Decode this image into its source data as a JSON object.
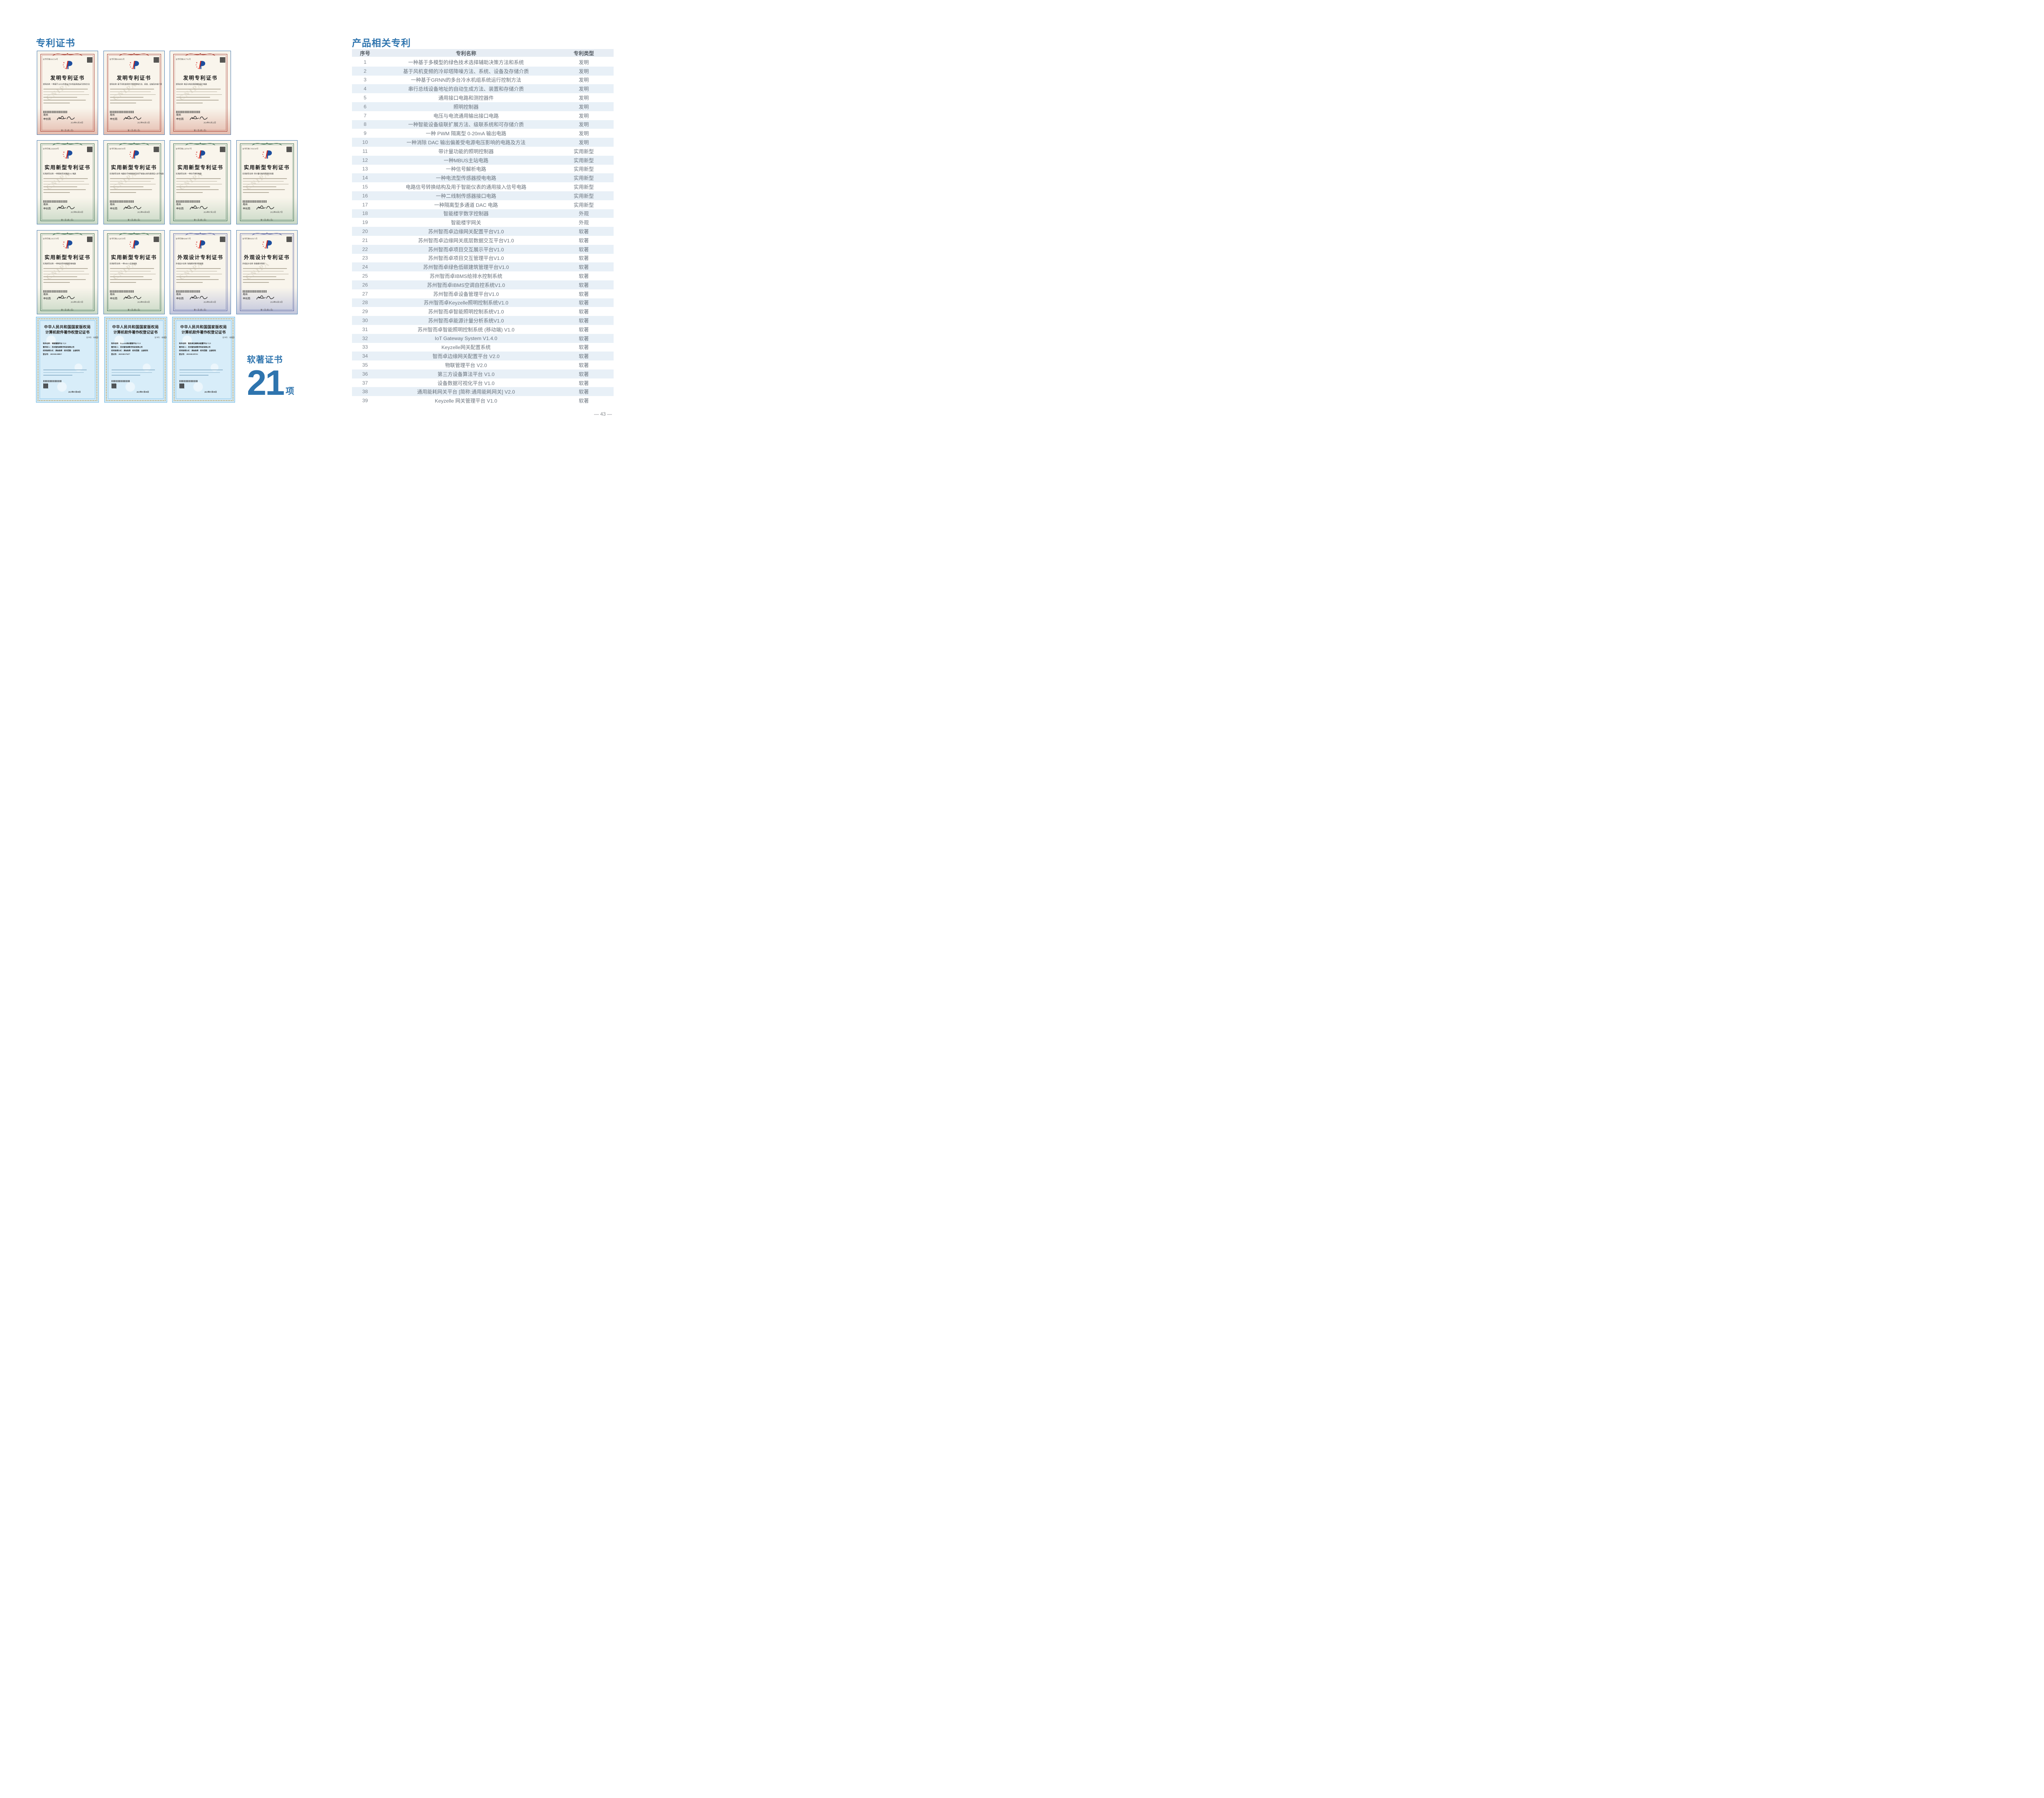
{
  "page": {
    "number_label": "— 43 —"
  },
  "left_section": {
    "heading": "专利证书"
  },
  "right_section": {
    "heading": "产品相关专利"
  },
  "software_stat": {
    "label": "软著证书",
    "value": "21",
    "unit": "项"
  },
  "patents_table": {
    "headers": {
      "no": "序号",
      "name": "专利名称",
      "type": "专利类型"
    },
    "rows": [
      {
        "no": "1",
        "name": "一种基于多模型的绿色技术选择辅助决策方法和系统",
        "type": "发明"
      },
      {
        "no": "2",
        "name": "基于风机变频的冷却塔降噪方法、系统、设备及存储介质",
        "type": "发明"
      },
      {
        "no": "3",
        "name": "一种基于GRNN的多台冷水机组系统运行控制方法",
        "type": "发明"
      },
      {
        "no": "4",
        "name": "串行总线设备地址的自动生成方法、装置和存储介质",
        "type": "发明"
      },
      {
        "no": "5",
        "name": "通用接口电路和测控器件",
        "type": "发明"
      },
      {
        "no": "6",
        "name": "照明控制器",
        "type": "发明"
      },
      {
        "no": "7",
        "name": "电压与电流通用输出接口电路",
        "type": "发明"
      },
      {
        "no": "8",
        "name": "一种智能设备级联扩展方法、级联系统和可存储介质",
        "type": "发明"
      },
      {
        "no": "9",
        "name": "一种 PWM 隔离型 0-20mA 输出电路",
        "type": "发明"
      },
      {
        "no": "10",
        "name": "一种消除 DAC 输出偏差受电源电压影响的电路及方法",
        "type": "发明"
      },
      {
        "no": "11",
        "name": "带计量功能的照明控制器",
        "type": "实用新型"
      },
      {
        "no": "12",
        "name": "一种MBUS主站电路",
        "type": "实用新型"
      },
      {
        "no": "13",
        "name": "一种信号解析电路",
        "type": "实用新型"
      },
      {
        "no": "14",
        "name": "一种电流型传感器授电电路",
        "type": "实用新型"
      },
      {
        "no": "15",
        "name": "电路信号转换结构及用于智能仪表的通用接入信号电路",
        "type": "实用新型"
      },
      {
        "no": "16",
        "name": "一种二线制传感器接口电路",
        "type": "实用新型"
      },
      {
        "no": "17",
        "name": "一种隔离型多通道 DAC 电路",
        "type": "实用新型"
      },
      {
        "no": "18",
        "name": "智能楼宇数字控制器",
        "type": "外观"
      },
      {
        "no": "19",
        "name": "智能楼宇网关",
        "type": "外观"
      },
      {
        "no": "20",
        "name": "苏州智而卓边缘网关配置平台V1.0",
        "type": "软著"
      },
      {
        "no": "21",
        "name": "苏州智而卓边缘网关底层数据交互平台V1.0",
        "type": "软著"
      },
      {
        "no": "22",
        "name": "苏州智而卓项目交互展示平台V1.0",
        "type": "软著"
      },
      {
        "no": "23",
        "name": "苏州智而卓项目交互管理平台V1.0",
        "type": "软著"
      },
      {
        "no": "24",
        "name": "苏州智而卓绿色低碳建筑管理平台V1.0",
        "type": "软著"
      },
      {
        "no": "25",
        "name": "苏州智而卓IBMS给排水控制系统",
        "type": "软著"
      },
      {
        "no": "26",
        "name": "苏州智而卓IBMS空调自控系统V1.0",
        "type": "软著"
      },
      {
        "no": "27",
        "name": "苏州智而卓设备管理平台V1.0",
        "type": "软著"
      },
      {
        "no": "28",
        "name": "苏州智而卓Keyzelle照明控制系统V1.0",
        "type": "软著"
      },
      {
        "no": "29",
        "name": "苏州智而卓智能照明控制系统V1.0",
        "type": "软著"
      },
      {
        "no": "30",
        "name": "苏州智而卓能源计量分析系统V1.0",
        "type": "软著"
      },
      {
        "no": "31",
        "name": "苏州智而卓智能照明控制系统 (移动端) V1.0",
        "type": "软著"
      },
      {
        "no": "32",
        "name": "IoT Gateway System V1.4.0",
        "type": "软著"
      },
      {
        "no": "33",
        "name": "Keyzelle网关配置系统",
        "type": "软著"
      },
      {
        "no": "34",
        "name": "智而卓边缘网关配置平台 V2.0",
        "type": "软著"
      },
      {
        "no": "35",
        "name": "物联管理平台 V2.0",
        "type": "软著"
      },
      {
        "no": "36",
        "name": "第三方设备算法平台 V1.0",
        "type": "软著"
      },
      {
        "no": "37",
        "name": "设备数据可视化平台 V1.0",
        "type": "软著"
      },
      {
        "no": "38",
        "name": "通用能耗网关平台 [简称:通用能耗网关] V2.0",
        "type": "软著"
      },
      {
        "no": "39",
        "name": "Keyzelle 网关管理平台 V1.0",
        "type": "软著"
      }
    ]
  },
  "certificate_common": {
    "director_label": "局长",
    "director_name": "申长雨",
    "page_note": "第 1 页 (共 2 页)",
    "watermark": "CNIPA"
  },
  "certificate_rows": [
    {
      "items": [
        {
          "style": "invention",
          "title": "发明专利证书",
          "name_label": "发明名称",
          "cert_no": "证书号第6661534号",
          "name": "一种基于GRNN的多台冷水机组系统运行控制方法",
          "date": "2024年01月30日"
        },
        {
          "style": "invention",
          "title": "发明专利证书",
          "name_label": "发明名称",
          "cert_no": "证书号第8000883号",
          "name": "基于风机变频的冷却塔降噪方法、系统、设备及存储介质",
          "date": "2025年06月13日"
        },
        {
          "style": "invention",
          "title": "发明专利证书",
          "name_label": "发明名称",
          "cert_no": "证书号第6817761号",
          "name": "电压与电流通用输出接口电路",
          "date": "2024年03月22日"
        }
      ]
    },
    {
      "items": [
        {
          "style": "utility",
          "title": "实用新型专利证书",
          "name_label": "实用新型名称",
          "cert_no": "证书号第22926608号",
          "name": "一种隔离型多通道DAC电路",
          "date": "2025年06月03日"
        },
        {
          "style": "utility",
          "title": "实用新型专利证书",
          "name_label": "实用新型名称",
          "cert_no": "证书号第20686596号",
          "name": "电路信号转换结构及用于智能仪表的通用接入信号电路",
          "date": "2023年04月06日"
        },
        {
          "style": "utility",
          "title": "实用新型专利证书",
          "name_label": "实用新型名称",
          "cert_no": "证书号第21287047号",
          "name": "一种信号解析电路",
          "date": "2024年07月23日"
        },
        {
          "style": "utility",
          "title": "实用新型专利证书",
          "name_label": "实用新型名称",
          "cert_no": "证书号第17856548号",
          "name": "带计量功能的照明控制器",
          "date": "2022年06月27日"
        }
      ]
    },
    {
      "items": [
        {
          "style": "utility",
          "title": "实用新型专利证书",
          "name_label": "实用新型名称",
          "cert_no": "证书号第21815578号",
          "name": "一种电流型传感器授电电路",
          "date": "2024年10月15日"
        },
        {
          "style": "utility",
          "title": "实用新型专利证书",
          "name_label": "实用新型名称",
          "cert_no": "证书号第21626558号",
          "name": "一种MBUS主站电路",
          "date": "2024年09月03日"
        },
        {
          "style": "design",
          "title": "外观设计专利证书",
          "name_label": "外观设计名称",
          "cert_no": "证书号第8604075号",
          "name": "智能楼宇数字控制器",
          "date": "2024年04月16日"
        },
        {
          "style": "design",
          "title": "外观设计专利证书",
          "name_label": "外观设计名称",
          "cert_no": "证书号第8605671号",
          "name": "智能楼宇网关",
          "date": "2024年04月16日"
        }
      ]
    },
    {
      "items": [
        {
          "style": "software",
          "title_line1": "中华人民共和国国家版权局",
          "title_line2": "计算机软件著作权登记证书",
          "cert_no": "证书号： 软著登字第15865015号",
          "software_name_label": "软件名称",
          "name": "物联管理平台 V2.0",
          "holder_label": "著作权人",
          "holder": "苏州智而卓数字科技有限公司",
          "acquire_label": "权利取得方式",
          "acquire": "原始取得",
          "scope_label": "权利范围",
          "scope": "全部权利",
          "reg_label": "登记号",
          "reg_no": "2025SR1208817",
          "date": "2025年07月09日"
        },
        {
          "style": "software",
          "title_line1": "中华人民共和国国家版权局",
          "title_line2": "计算机软件著作权登记证书",
          "cert_no": "证书号： 软著登字第15835675号",
          "software_name_label": "软件名称",
          "name": "Keyzelle网关管理平台 V1.0",
          "holder_label": "著作权人",
          "holder": "苏州智而卓数字科技有限公司",
          "acquire_label": "权利取得方式",
          "acquire": "原始取得",
          "scope_label": "权利范围",
          "scope": "全部权利",
          "reg_label": "登记号",
          "reg_no": "2025SR1179477",
          "date": "2025年07月09日"
        },
        {
          "style": "software",
          "title_line1": "中华人民共和国国家版权局",
          "title_line2": "计算机软件著作权登记证书",
          "cert_no": "证书号： 软著登字第15863449号",
          "software_name_label": "软件名称",
          "name": "智而卓边缘网关配置平台 V2.0",
          "holder_label": "著作权人",
          "holder": "苏州智而卓数字科技有限公司",
          "acquire_label": "权利取得方式",
          "acquire": "原始取得",
          "scope_label": "权利范围",
          "scope": "全部权利",
          "reg_label": "登记号",
          "reg_no": "2025SR1207251",
          "date": "2025年07月09日"
        }
      ]
    }
  ],
  "colors": {
    "accent_blue": "#2e74ae",
    "table_header_bg": "#e7edf4",
    "table_zebra_bg": "#e8f0f7",
    "table_text": "#6a737d",
    "invention_accent": "#a63a2e",
    "utility_accent": "#33684a",
    "design_accent": "#55619f",
    "software_border_blue": "#6fb7e0",
    "software_gold": "#c3a04f",
    "page_number_gray": "#85898d"
  }
}
